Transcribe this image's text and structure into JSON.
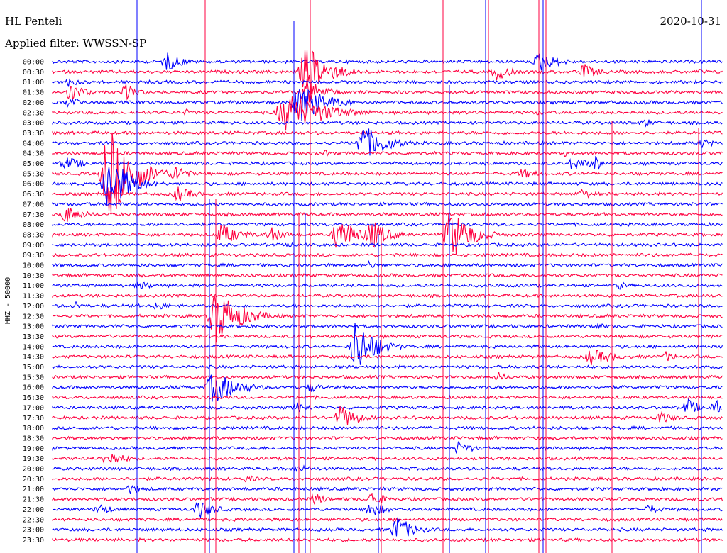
{
  "header": {
    "station": "HL Penteli",
    "filter": "Applied filter: WWSSN-SP",
    "date": "2020-10-31"
  },
  "chart_data": {
    "type": "line",
    "ylabel": "HHZ - 50000",
    "categories": [
      "00:00",
      "00:30",
      "01:00",
      "01:30",
      "02:00",
      "02:30",
      "03:00",
      "03:30",
      "04:00",
      "04:30",
      "05:00",
      "05:30",
      "06:00",
      "06:30",
      "07:00",
      "07:30",
      "08:00",
      "08:30",
      "09:00",
      "09:30",
      "10:00",
      "10:30",
      "11:00",
      "11:30",
      "12:00",
      "12:30",
      "13:00",
      "13:30",
      "14:00",
      "14:30",
      "15:00",
      "15:30",
      "16:00",
      "16:30",
      "17:00",
      "17:30",
      "18:00",
      "18:30",
      "19:00",
      "19:30",
      "20:00",
      "20:30",
      "21:00",
      "21:30",
      "22:00",
      "22:30",
      "23:00",
      "23:30"
    ],
    "series_colors": [
      "#0000ff",
      "#ff0040"
    ],
    "grid": false,
    "legend": "none"
  }
}
